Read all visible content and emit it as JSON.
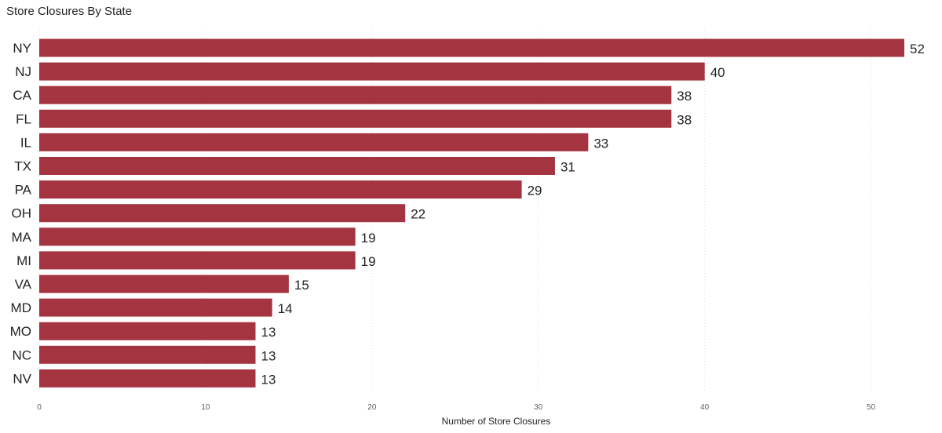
{
  "chart_data": {
    "type": "bar",
    "orientation": "horizontal",
    "title": "Store Closures By State",
    "xlabel": "Number of Store Closures",
    "ylabel": "",
    "categories": [
      "NY",
      "NJ",
      "CA",
      "FL",
      "IL",
      "TX",
      "PA",
      "OH",
      "MA",
      "MI",
      "VA",
      "MD",
      "MO",
      "NC",
      "NV"
    ],
    "values": [
      52,
      40,
      38,
      38,
      33,
      31,
      29,
      22,
      19,
      19,
      15,
      14,
      13,
      13,
      13
    ],
    "xlim": [
      0,
      52
    ],
    "xticks": [
      0,
      10,
      20,
      30,
      40,
      50
    ],
    "grid": true,
    "legend": "none",
    "colors": {
      "bar": "#a4343f"
    }
  }
}
